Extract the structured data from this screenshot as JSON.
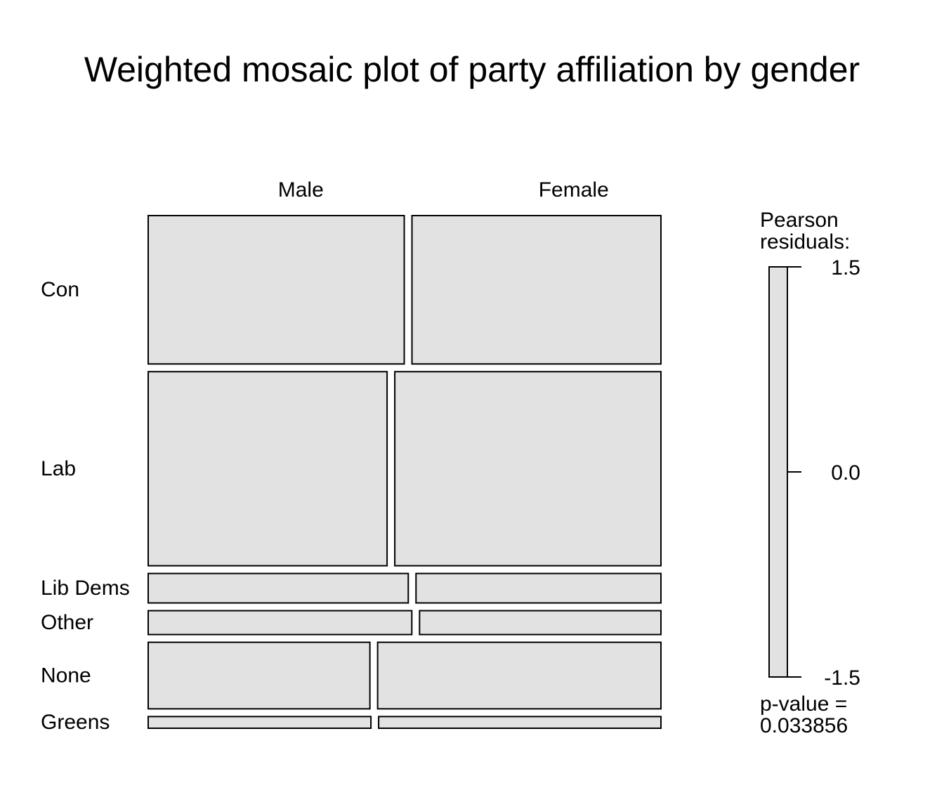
{
  "chart_data": {
    "type": "mosaic",
    "title": "Weighted mosaic plot of party affiliation by gender",
    "column_variable_levels": [
      "Male",
      "Female"
    ],
    "row_variable_levels": [
      "Con",
      "Lab",
      "Lib Dems",
      "Other",
      "None",
      "Greens"
    ],
    "row_proportions": [
      0.292,
      0.382,
      0.058,
      0.047,
      0.131,
      0.023
    ],
    "male_share_within_row": [
      0.507,
      0.473,
      0.515,
      0.522,
      0.439,
      0.441
    ],
    "residual_colorbar": {
      "title_line1": "Pearson",
      "title_line2": "residuals:",
      "ticks": [
        "1.5",
        "0.0",
        "-1.5"
      ],
      "tick_values": [
        1.5,
        0.0,
        -1.5
      ],
      "range": [
        -1.5,
        1.5
      ]
    },
    "p_value_label": "p-value =",
    "p_value": "0.033856",
    "tile_fill_color": "#e2e2e2",
    "border_color": "#000000"
  }
}
